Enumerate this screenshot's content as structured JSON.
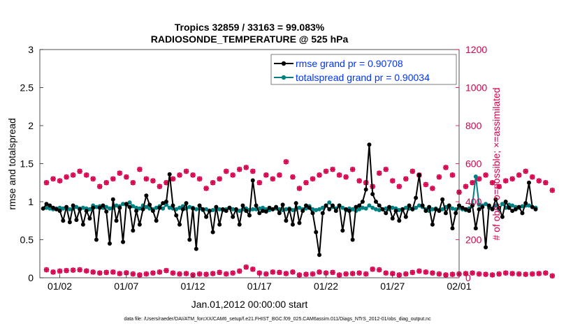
{
  "chart_data": {
    "type": "line",
    "title_line1": "Tropics 32859 / 33163 = 99.083%",
    "title_line2": "RADIOSONDE_TEMPERATURE @ 525 hPa",
    "xlabel": "Jan.01,2012 00:00:00 start",
    "ylabel_left": "rmse and totalspread",
    "ylabel_right": "# of obs: o=possible; ×=assimilated",
    "footer": "data file: /Users/raeder/DAI/ATM_forcXX/CAM6_setup/f.e21.FHIST_BGC.f09_025.CAM6assim.011/Diags_NTrS_2012-01/obs_diag_output.nc",
    "xlim": [
      0.5,
      32.0
    ],
    "ylim_left": [
      0,
      3
    ],
    "ylim_right": [
      0,
      1200
    ],
    "x_ticks": [
      {
        "x": 2,
        "label": "01/02"
      },
      {
        "x": 7,
        "label": "01/07"
      },
      {
        "x": 12,
        "label": "01/12"
      },
      {
        "x": 17,
        "label": "01/17"
      },
      {
        "x": 22,
        "label": "01/22"
      },
      {
        "x": 27,
        "label": "01/27"
      },
      {
        "x": 32,
        "label": "02/01"
      }
    ],
    "y_left_ticks": [
      "0",
      "0.5",
      "1",
      "1.5",
      "2",
      "2.5",
      "3"
    ],
    "y_right_ticks": [
      "0",
      "200",
      "400",
      "600",
      "800",
      "1000",
      "1200"
    ],
    "legend": {
      "rmse_label": "rmse grand pr = 0.90708",
      "spread_label": "totalspread grand pr = 0.90034"
    },
    "colors": {
      "rmse": "#000000",
      "spread": "#008080",
      "obs": "#d6004c",
      "legend_text": "#0033ff"
    },
    "x_start": 0.75,
    "x_step": 0.25,
    "series": [
      {
        "name": "rmse",
        "values": [
          0.91,
          0.97,
          0.95,
          0.92,
          0.9,
          0.88,
          0.75,
          0.93,
          0.73,
          0.95,
          0.76,
          0.9,
          0.7,
          0.88,
          0.78,
          0.92,
          0.5,
          0.92,
          0.95,
          0.87,
          0.45,
          1.03,
          0.75,
          0.92,
          0.47,
          0.97,
          0.93,
          0.62,
          0.88,
          0.7,
          0.9,
          1.08,
          0.96,
          0.88,
          0.75,
          0.92,
          0.98,
          1.0,
          1.36,
          0.95,
          0.82,
          0.7,
          0.9,
          0.98,
          0.5,
          0.91,
          0.38,
          0.95,
          0.9,
          0.8,
          0.88,
          0.6,
          0.93,
          0.7,
          0.9,
          0.88,
          0.92,
          0.8,
          0.9,
          0.7,
          0.95,
          0.88,
          0.82,
          1.28,
          0.95,
          0.85,
          0.88,
          0.87,
          0.92,
          0.9,
          0.93,
          0.85,
          0.96,
          0.75,
          0.9,
          0.7,
          0.98,
          0.72,
          0.88,
          0.95,
          0.92,
          0.85,
          0.6,
          0.3,
          0.85,
          0.95,
          0.9,
          0.95,
          0.88,
          0.95,
          0.62,
          0.9,
          0.88,
          0.5,
          0.93,
          0.95,
          1.0,
          1.16,
          1.75,
          1.1,
          1.0,
          0.95,
          0.9,
          0.85,
          0.93,
          0.78,
          0.88,
          0.75,
          0.9,
          0.8,
          0.95,
          0.9,
          1.05,
          1.35,
          0.95,
          0.88,
          0.93,
          0.7,
          0.9,
          0.88,
          1.03,
          0.85,
          0.95,
          0.65,
          0.85,
          0.95,
          0.92,
          0.9,
          0.88,
          0.95,
          0.65,
          0.9,
          0.93,
          0.4,
          0.95,
          0.9,
          1.03,
          0.92,
          0.8,
          1.0,
          0.92,
          0.88,
          0.9,
          0.93,
          0.85,
          0.98,
          1.25,
          0.93,
          0.9
        ]
      },
      {
        "name": "totalspread",
        "values": [
          0.91,
          0.92,
          0.91,
          0.9,
          0.91,
          0.92,
          0.91,
          0.92,
          0.9,
          0.91,
          0.93,
          0.91,
          0.92,
          0.91,
          0.9,
          0.95,
          0.93,
          0.94,
          0.92,
          0.93,
          0.91,
          0.92,
          0.95,
          0.94,
          0.97,
          0.96,
          0.99,
          0.94,
          0.92,
          0.91,
          0.95,
          0.93,
          0.91,
          0.9,
          0.92,
          0.94,
          0.91,
          0.96,
          0.92,
          0.91,
          0.9,
          0.92,
          0.94,
          0.91,
          0.93,
          0.92,
          0.9,
          0.91,
          0.89,
          0.9,
          0.88,
          0.89,
          0.9,
          0.9,
          0.89,
          0.9,
          0.92,
          0.9,
          0.89,
          0.88,
          0.9,
          0.91,
          0.89,
          0.9,
          0.9,
          0.91,
          0.92,
          0.9,
          0.89,
          0.9,
          0.91,
          0.9,
          0.89,
          0.9,
          0.91,
          0.89,
          0.9,
          0.92,
          0.9,
          0.91,
          0.94,
          0.9,
          0.89,
          0.9,
          0.92,
          0.95,
          0.99,
          0.93,
          0.91,
          0.95,
          0.92,
          0.89,
          0.91,
          0.9,
          0.88,
          0.9,
          0.92,
          0.91,
          0.95,
          0.92,
          0.9,
          0.89,
          0.9,
          0.91,
          0.9,
          0.92,
          0.91,
          0.89,
          0.9,
          0.92,
          0.91,
          0.9,
          0.92,
          0.95,
          0.93,
          0.9,
          0.88,
          0.9,
          0.91,
          0.89,
          0.9,
          0.93,
          0.95,
          0.91,
          0.9,
          0.92,
          0.9,
          0.89,
          0.91,
          0.96,
          1.33,
          0.96,
          0.95,
          0.97,
          0.92,
          0.91,
          0.95,
          0.9,
          0.97,
          0.92,
          0.96,
          0.95,
          0.93,
          0.92,
          0.94,
          0.95,
          0.95,
          0.93,
          0.92
        ]
      },
      {
        "name": "obs_possible_and_assimilated",
        "x_start": 1.0,
        "x_step": 0.5,
        "values": [
          500,
          520,
          510,
          530,
          540,
          560,
          540,
          520,
          480,
          500,
          520,
          550,
          530,
          500,
          570,
          520,
          510,
          480,
          500,
          520,
          540,
          560,
          540,
          520,
          470,
          500,
          520,
          560,
          540,
          570,
          580,
          560,
          500,
          540,
          520,
          540,
          610,
          530,
          470,
          500,
          520,
          540,
          560,
          570,
          540,
          530,
          570,
          510,
          500,
          480,
          550,
          570,
          510,
          480,
          520,
          560,
          540,
          490,
          470,
          530,
          580,
          540,
          450,
          480,
          500,
          520,
          540,
          500,
          480,
          510,
          520,
          540,
          560,
          530,
          510,
          500,
          460
        ]
      },
      {
        "name": "obs_low_band",
        "x_start": 1.0,
        "x_step": 0.5,
        "values": [
          42,
          30,
          35,
          38,
          40,
          42,
          36,
          30,
          25,
          28,
          30,
          22,
          26,
          20,
          15,
          20,
          25,
          30,
          38,
          25,
          20,
          22,
          15,
          20,
          18,
          22,
          28,
          20,
          25,
          35,
          56,
          45,
          25,
          20,
          30,
          28,
          22,
          30,
          15,
          18,
          20,
          30,
          25,
          28,
          15,
          20,
          22,
          25,
          20,
          45,
          42,
          25,
          22,
          15,
          20,
          28,
          35,
          30,
          25,
          20,
          15,
          18,
          20,
          22,
          25,
          20,
          18,
          15,
          20,
          25,
          22,
          20,
          18,
          20,
          22,
          25,
          10
        ]
      }
    ]
  }
}
